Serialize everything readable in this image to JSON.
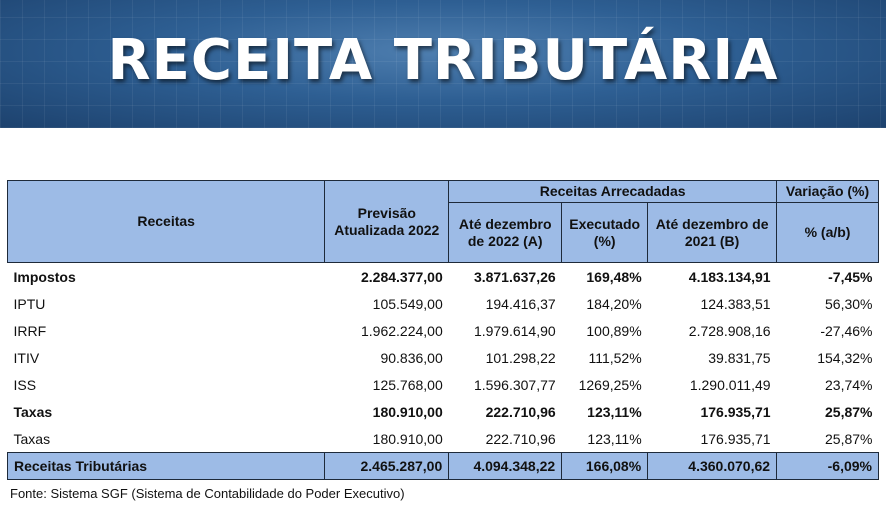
{
  "banner": {
    "title": "RECEITA TRIBUTÁRIA"
  },
  "table": {
    "headers": {
      "receitas": "Receitas",
      "previsao": "Previsão Atualizada 2022",
      "group_arrecadadas": "Receitas Arrecadadas",
      "group_variacao": "Variação (%)",
      "ate_2022": "Até dezembro de 2022 (A)",
      "executado": "Executado (%)",
      "ate_2021": "Até dezembro de 2021 (B)",
      "variacao_ab": "% (a/b)"
    },
    "rows": [
      [
        "Impostos",
        "2.284.377,00",
        "3.871.637,26",
        "169,48%",
        "4.183.134,91",
        "-7,45%"
      ],
      [
        "IPTU",
        "105.549,00",
        "194.416,37",
        "184,20%",
        "124.383,51",
        "56,30%"
      ],
      [
        "IRRF",
        "1.962.224,00",
        "1.979.614,90",
        "100,89%",
        "2.728.908,16",
        "-27,46%"
      ],
      [
        "ITIV",
        "90.836,00",
        "101.298,22",
        "111,52%",
        "39.831,75",
        "154,32%"
      ],
      [
        "ISS",
        "125.768,00",
        "1.596.307,77",
        "1269,25%",
        "1.290.011,49",
        "23,74%"
      ],
      [
        "Taxas",
        "180.910,00",
        "222.710,96",
        "123,11%",
        "176.935,71",
        "25,87%"
      ],
      [
        "Taxas",
        "180.910,00",
        "222.710,96",
        "123,11%",
        "176.935,71",
        "25,87%"
      ]
    ],
    "total": [
      "Receitas Tributárias",
      "2.465.287,00",
      "4.094.348,22",
      "166,08%",
      "4.360.070,62",
      "-6,09%"
    ]
  },
  "footnote": "Fonte: Sistema SGF (Sistema de Contabilidade do Poder Executivo)"
}
